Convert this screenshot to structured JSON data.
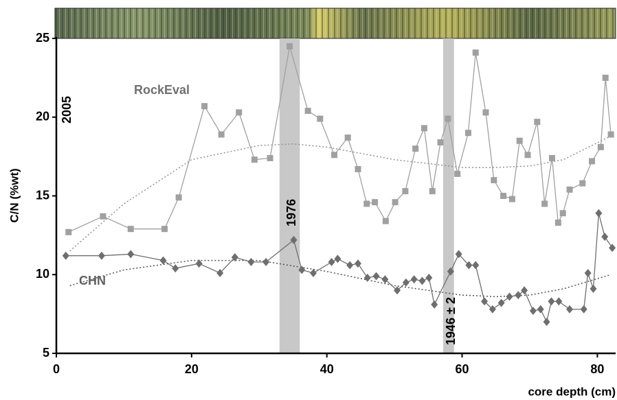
{
  "chart_data": {
    "type": "line",
    "x_label": "core depth (cm)",
    "y_label": "C/N (%wt)",
    "xlim": [
      0,
      82.7
    ],
    "ylim": [
      5,
      25
    ],
    "xticks": [
      0,
      20,
      40,
      60,
      80
    ],
    "yticks": [
      5,
      10,
      15,
      20,
      25
    ],
    "bands": [
      [
        33,
        36
      ],
      [
        57.2,
        58.8
      ]
    ],
    "band_color": "#c8c8c8",
    "annotations": [
      "2005",
      "RockEval",
      "CHN",
      "1976",
      "1946 ± 2"
    ],
    "series": [
      {
        "name": "RockEval",
        "color": "#a0a0a0",
        "marker": "square",
        "x": [
          1.8,
          6.9,
          11.0,
          16.0,
          18.1,
          21.9,
          24.4,
          27.0,
          29.3,
          31.6,
          34.5,
          37.2,
          39.0,
          41.1,
          43.1,
          44.6,
          45.9,
          47.1,
          48.7,
          50.1,
          51.6,
          53.1,
          54.4,
          55.6,
          56.8,
          57.9,
          59.3,
          60.9,
          62.0,
          63.5,
          64.7,
          66.1,
          67.4,
          68.5,
          69.7,
          71.1,
          72.2,
          73.3,
          74.2,
          74.9,
          75.9,
          77.8,
          79.2,
          80.5,
          81.2,
          82.0
        ],
        "values": [
          12.7,
          13.7,
          12.9,
          12.9,
          14.9,
          20.7,
          18.9,
          20.3,
          17.3,
          17.4,
          24.5,
          20.4,
          19.9,
          17.6,
          18.7,
          16.7,
          14.5,
          14.6,
          13.4,
          14.6,
          15.3,
          18.0,
          19.3,
          15.3,
          18.4,
          19.9,
          16.4,
          19.0,
          24.1,
          20.3,
          16.0,
          15.0,
          14.8,
          18.5,
          17.6,
          19.7,
          14.5,
          17.4,
          13.3,
          13.9,
          15.4,
          15.8,
          17.2,
          18.1,
          22.5,
          18.9
        ]
      },
      {
        "name": "CHN",
        "color": "#6e6e6e",
        "marker": "diamond",
        "x": [
          1.4,
          6.7,
          11.0,
          15.8,
          17.6,
          21.1,
          24.2,
          26.4,
          28.8,
          31.0,
          35.1,
          36.3,
          38.0,
          40.7,
          41.6,
          43.4,
          44.6,
          46.0,
          47.3,
          48.6,
          50.4,
          51.7,
          52.9,
          54.1,
          55.1,
          55.9,
          58.3,
          59.5,
          61.0,
          62.0,
          63.3,
          64.5,
          65.8,
          67.0,
          68.3,
          69.2,
          70.5,
          71.6,
          72.5,
          73.2,
          74.3,
          75.9,
          78.0,
          78.6,
          79.4,
          80.2,
          81.1,
          82.2
        ],
        "values": [
          11.2,
          11.2,
          11.3,
          10.9,
          10.4,
          10.7,
          10.1,
          11.1,
          10.8,
          10.8,
          12.2,
          10.3,
          10.1,
          10.8,
          11.0,
          10.6,
          10.7,
          9.8,
          9.9,
          9.7,
          9.0,
          9.5,
          9.7,
          9.6,
          9.8,
          8.1,
          10.2,
          11.3,
          10.6,
          10.6,
          8.3,
          7.8,
          8.2,
          8.6,
          8.7,
          9.0,
          7.7,
          7.8,
          7.0,
          8.3,
          8.3,
          7.8,
          7.8,
          10.1,
          9.1,
          13.9,
          12.4,
          11.7
        ]
      }
    ],
    "trendlines": [
      {
        "color": "#909090",
        "x": [
          2,
          10,
          20,
          30,
          35,
          40,
          50,
          60,
          65,
          70,
          75,
          82
        ],
        "values": [
          11.5,
          14.5,
          17.3,
          18.2,
          18.3,
          18.1,
          17.3,
          16.8,
          16.8,
          16.9,
          17.3,
          18.8
        ]
      },
      {
        "color": "#505050",
        "x": [
          2,
          10,
          20,
          30,
          40,
          50,
          60,
          65,
          70,
          75,
          82
        ],
        "values": [
          9.3,
          10.3,
          10.9,
          10.9,
          10.2,
          9.3,
          8.7,
          8.6,
          8.7,
          9.1,
          10.0
        ]
      }
    ]
  }
}
